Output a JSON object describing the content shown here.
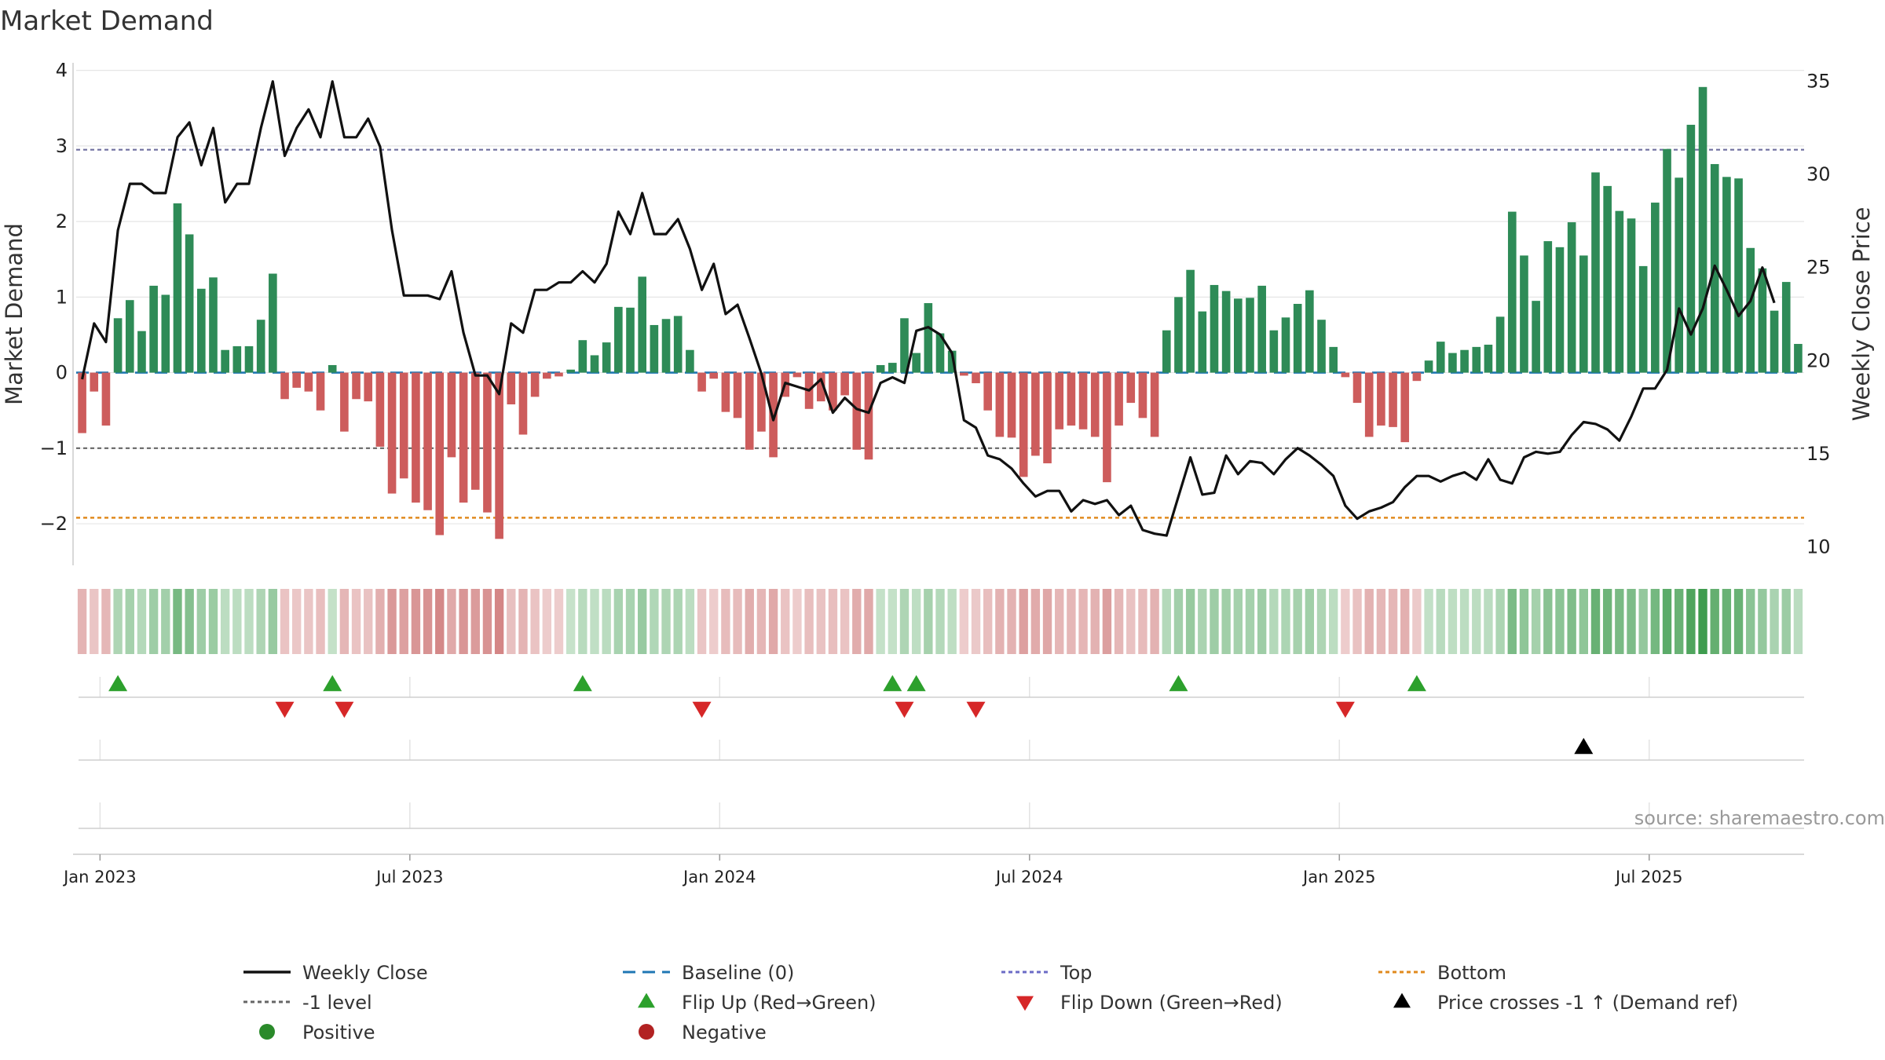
{
  "chart_data": {
    "type": "bar+line",
    "title": "Market Demand",
    "ylabel_left": "Market Demand",
    "ylabel_right": "Weekly Close Price",
    "ylim_left": [
      -2.55,
      4.1
    ],
    "ylim_right": [
      9,
      36
    ],
    "yticks_left": [
      4,
      3,
      2,
      1,
      0,
      -1,
      -2
    ],
    "yticks_left_labels": [
      "4",
      "3",
      "2",
      "1",
      "0",
      "−1",
      "−2"
    ],
    "yticks_right": [
      35,
      30,
      25,
      20,
      15,
      10
    ],
    "yticks_right_labels": [
      "35",
      "30",
      "25",
      "20",
      "15",
      "10"
    ],
    "x_start": "2022-12-19",
    "x_interval_days": 7,
    "xticks": [
      {
        "label": "Jan 2023",
        "week": 2
      },
      {
        "label": "Jul 2023",
        "week": 28
      },
      {
        "label": "Jan 2024",
        "week": 54
      },
      {
        "label": "Jul 2024",
        "week": 80
      },
      {
        "label": "Jan 2025",
        "week": 106
      },
      {
        "label": "Jul 2025",
        "week": 132
      }
    ],
    "reference_lines": {
      "baseline": 0,
      "top": 2.95,
      "minus_one": -1,
      "bottom": -1.92
    },
    "demand": [
      -0.8,
      -0.25,
      -0.7,
      0.72,
      0.96,
      0.55,
      1.15,
      1.03,
      2.24,
      1.83,
      1.11,
      1.26,
      0.3,
      0.35,
      0.35,
      0.7,
      1.31,
      -0.35,
      -0.2,
      -0.25,
      -0.5,
      0.1,
      -0.78,
      -0.35,
      -0.38,
      -0.98,
      -1.6,
      -1.4,
      -1.72,
      -1.82,
      -2.15,
      -1.12,
      -1.72,
      -1.55,
      -1.85,
      -2.2,
      -0.42,
      -0.82,
      -0.32,
      -0.08,
      -0.05,
      0.04,
      0.43,
      0.23,
      0.4,
      0.87,
      0.86,
      1.27,
      0.63,
      0.71,
      0.75,
      0.3,
      -0.25,
      -0.08,
      -0.52,
      -0.6,
      -1.02,
      -0.78,
      -1.12,
      -0.32,
      -0.06,
      -0.48,
      -0.38,
      -0.5,
      -0.3,
      -1.02,
      -1.15,
      0.1,
      0.13,
      0.72,
      0.26,
      0.92,
      0.52,
      0.29,
      -0.04,
      -0.14,
      -0.5,
      -0.85,
      -0.86,
      -1.38,
      -1.1,
      -1.2,
      -0.75,
      -0.7,
      -0.75,
      -0.85,
      -1.45,
      -0.7,
      -0.4,
      -0.6,
      -0.85,
      0.56,
      1.0,
      1.36,
      0.81,
      1.16,
      1.08,
      0.98,
      0.99,
      1.15,
      0.56,
      0.73,
      0.91,
      1.09,
      0.7,
      0.34,
      -0.06,
      -0.4,
      -0.85,
      -0.7,
      -0.72,
      -0.92,
      -0.11,
      0.16,
      0.41,
      0.26,
      0.3,
      0.34,
      0.37,
      0.74,
      2.13,
      1.55,
      0.95,
      1.74,
      1.66,
      1.99,
      1.55,
      2.65,
      2.47,
      2.14,
      2.04,
      1.41,
      2.25,
      2.96,
      2.58,
      3.28,
      3.78,
      2.76,
      2.59,
      2.57,
      1.65,
      1.38,
      0.82,
      1.2,
      0.38
    ],
    "weekly_close": [
      19,
      22,
      21,
      27,
      29.5,
      29.5,
      29,
      29,
      32,
      32.8,
      30.5,
      32.5,
      28.5,
      29.5,
      29.5,
      32.5,
      35,
      31,
      32.5,
      33.5,
      32,
      35,
      32,
      32,
      33,
      31.5,
      27,
      23.5,
      23.5,
      23.5,
      23.3,
      24.8,
      21.5,
      19.2,
      19.2,
      18.2,
      22,
      21.5,
      23.8,
      23.8,
      24.2,
      24.2,
      24.8,
      24.2,
      25.2,
      28,
      26.8,
      29,
      26.8,
      26.8,
      27.6,
      26,
      23.8,
      25.2,
      22.5,
      23,
      21.2,
      19.3,
      16.8,
      18.8,
      18.6,
      18.4,
      19,
      17.2,
      18,
      17.4,
      17.2,
      18.8,
      19.1,
      18.8,
      21.6,
      21.8,
      21.4,
      20.4,
      16.8,
      16.4,
      14.9,
      14.7,
      14.2,
      13.4,
      12.7,
      13,
      13,
      11.9,
      12.5,
      12.3,
      12.5,
      11.7,
      12.2,
      10.9,
      10.7,
      10.6,
      12.7,
      14.8,
      12.8,
      12.9,
      14.9,
      13.9,
      14.6,
      14.5,
      13.9,
      14.7,
      15.3,
      14.9,
      14.4,
      13.8,
      12.2,
      11.5,
      11.9,
      12.1,
      12.4,
      13.2,
      13.8,
      13.8,
      13.5,
      13.8,
      14,
      13.6,
      14.7,
      13.6,
      13.4,
      14.8,
      15.1,
      15,
      15.1,
      16,
      16.7,
      16.6,
      16.3,
      15.7,
      17,
      18.5,
      18.5,
      19.5,
      22.8,
      21.4,
      22.8,
      25.1,
      23.8,
      22.4,
      23.2,
      25,
      23.1
    ],
    "flip_up_weeks": [
      3,
      21,
      42,
      68,
      70,
      92,
      112
    ],
    "flip_down_weeks": [
      17,
      22,
      52,
      69,
      75,
      106
    ],
    "price_cross_weeks": [
      126
    ],
    "legend": [
      {
        "label": "Weekly Close",
        "kind": "line-solid",
        "color": "#111111"
      },
      {
        "label": "Baseline (0)",
        "kind": "line-dashed",
        "color": "#1f77b4"
      },
      {
        "label": "Top",
        "kind": "line-dotted",
        "color": "#6b6bc6"
      },
      {
        "label": "Bottom",
        "kind": "line-dotted",
        "color": "#e08a1e"
      },
      {
        "label": "-1 level",
        "kind": "line-dotted",
        "color": "#666666"
      },
      {
        "label": "Flip Up (Red→Green)",
        "kind": "triangle-up",
        "color": "#2ca02c"
      },
      {
        "label": "Flip Down (Green→Red)",
        "kind": "triangle-down",
        "color": "#d62728"
      },
      {
        "label": "Price crosses -1 ↑ (Demand ref)",
        "kind": "triangle-up",
        "color": "#000000"
      },
      {
        "label": "Positive",
        "kind": "dot",
        "color": "#2a8a2a"
      },
      {
        "label": "Negative",
        "kind": "dot",
        "color": "#b22222"
      }
    ],
    "source": "source: sharemaestro.com"
  },
  "colors": {
    "positive_bar": "#2e8b57",
    "negative_bar": "#cd5c5c",
    "heat_positive": "#3a9a4a",
    "heat_negative": "#c05050",
    "line": "#111111",
    "grid": "#e6e6e6"
  }
}
